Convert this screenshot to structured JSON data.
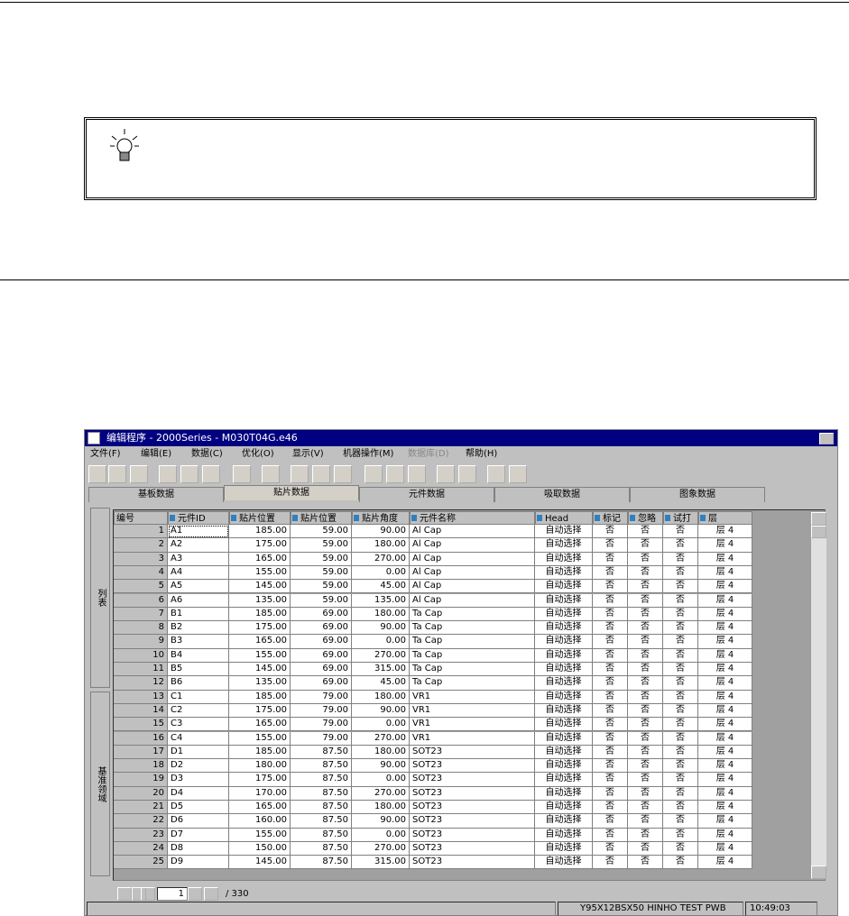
{
  "window": {
    "title": "编辑程序 - 2000Series - M030T04G.e46",
    "menu": [
      "文件(F)",
      "编辑(E)",
      "数据(C)",
      "优化(O)",
      "显示(V)",
      "机器操作(M)",
      "数据库(D)",
      "帮助(H)"
    ],
    "tabs": [
      "基板数据",
      "贴片数据",
      "元件数据",
      "吸取数据",
      "图象数据"
    ],
    "side_tabs": [
      "列表",
      "基准领域"
    ],
    "table": {
      "headers": [
        "编号",
        "元件ID",
        "贴片位置",
        "贴片位置",
        "贴片角度",
        "元件名称",
        "Head",
        "标记",
        "忽略",
        "试打",
        "层"
      ],
      "rows": [
        [
          "1",
          "A1",
          "185.00",
          "59.00",
          "90.00",
          "Al Cap",
          "自动选择",
          "否",
          "否",
          "否",
          "层 4"
        ],
        [
          "2",
          "A2",
          "175.00",
          "59.00",
          "180.00",
          "Al Cap",
          "自动选择",
          "否",
          "否",
          "否",
          "层 4"
        ],
        [
          "3",
          "A3",
          "165.00",
          "59.00",
          "270.00",
          "Al Cap",
          "自动选择",
          "否",
          "否",
          "否",
          "层 4"
        ],
        [
          "4",
          "A4",
          "155.00",
          "59.00",
          "0.00",
          "Al Cap",
          "自动选择",
          "否",
          "否",
          "否",
          "层 4"
        ],
        [
          "5",
          "A5",
          "145.00",
          "59.00",
          "45.00",
          "Al Cap",
          "自动选择",
          "否",
          "否",
          "否",
          "层 4"
        ],
        [
          "6",
          "A6",
          "135.00",
          "59.00",
          "135.00",
          "Al Cap",
          "自动选择",
          "否",
          "否",
          "否",
          "层 4"
        ],
        [
          "7",
          "B1",
          "185.00",
          "69.00",
          "180.00",
          "Ta Cap",
          "自动选择",
          "否",
          "否",
          "否",
          "层 4"
        ],
        [
          "8",
          "B2",
          "175.00",
          "69.00",
          "90.00",
          "Ta Cap",
          "自动选择",
          "否",
          "否",
          "否",
          "层 4"
        ],
        [
          "9",
          "B3",
          "165.00",
          "69.00",
          "0.00",
          "Ta Cap",
          "自动选择",
          "否",
          "否",
          "否",
          "层 4"
        ],
        [
          "10",
          "B4",
          "155.00",
          "69.00",
          "270.00",
          "Ta Cap",
          "自动选择",
          "否",
          "否",
          "否",
          "层 4"
        ],
        [
          "11",
          "B5",
          "145.00",
          "69.00",
          "315.00",
          "Ta Cap",
          "自动选择",
          "否",
          "否",
          "否",
          "层 4"
        ],
        [
          "12",
          "B6",
          "135.00",
          "69.00",
          "45.00",
          "Ta Cap",
          "自动选择",
          "否",
          "否",
          "否",
          "层 4"
        ],
        [
          "13",
          "C1",
          "185.00",
          "79.00",
          "180.00",
          "VR1",
          "自动选择",
          "否",
          "否",
          "否",
          "层 4"
        ],
        [
          "14",
          "C2",
          "175.00",
          "79.00",
          "90.00",
          "VR1",
          "自动选择",
          "否",
          "否",
          "否",
          "层 4"
        ],
        [
          "15",
          "C3",
          "165.00",
          "79.00",
          "0.00",
          "VR1",
          "自动选择",
          "否",
          "否",
          "否",
          "层 4"
        ],
        [
          "16",
          "C4",
          "155.00",
          "79.00",
          "270.00",
          "VR1",
          "自动选择",
          "否",
          "否",
          "否",
          "层 4"
        ],
        [
          "17",
          "D1",
          "185.00",
          "87.50",
          "180.00",
          "SOT23",
          "自动选择",
          "否",
          "否",
          "否",
          "层 4"
        ],
        [
          "18",
          "D2",
          "180.00",
          "87.50",
          "90.00",
          "SOT23",
          "自动选择",
          "否",
          "否",
          "否",
          "层 4"
        ],
        [
          "19",
          "D3",
          "175.00",
          "87.50",
          "0.00",
          "SOT23",
          "自动选择",
          "否",
          "否",
          "否",
          "层 4"
        ],
        [
          "20",
          "D4",
          "170.00",
          "87.50",
          "270.00",
          "SOT23",
          "自动选择",
          "否",
          "否",
          "否",
          "层 4"
        ],
        [
          "21",
          "D5",
          "165.00",
          "87.50",
          "180.00",
          "SOT23",
          "自动选择",
          "否",
          "否",
          "否",
          "层 4"
        ],
        [
          "22",
          "D6",
          "160.00",
          "87.50",
          "90.00",
          "SOT23",
          "自动选择",
          "否",
          "否",
          "否",
          "层 4"
        ],
        [
          "23",
          "D7",
          "155.00",
          "87.50",
          "0.00",
          "SOT23",
          "自动选择",
          "否",
          "否",
          "否",
          "层 4"
        ],
        [
          "24",
          "D8",
          "150.00",
          "87.50",
          "270.00",
          "SOT23",
          "自动选择",
          "否",
          "否",
          "否",
          "层 4"
        ],
        [
          "25",
          "D9",
          "145.00",
          "87.50",
          "315.00",
          "SOT23",
          "自动选择",
          "否",
          "否",
          "否",
          "层 4"
        ]
      ]
    },
    "pager": {
      "page": "1",
      "total": "/ 330"
    },
    "status": {
      "info": "Y95X12BSX50 HINHO TEST PWB",
      "time": "10:49:03"
    }
  }
}
